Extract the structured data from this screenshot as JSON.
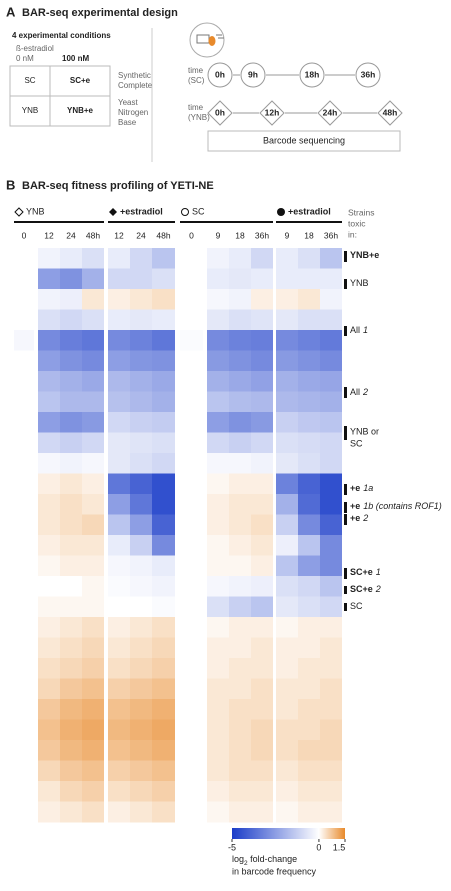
{
  "panel_a": {
    "letter": "A",
    "title": "BAR-seq experimental design",
    "conditions_title": "4 experimental conditions",
    "drug": "ß-estradiol",
    "dose_low": "0 nM",
    "dose_high": "100 nM",
    "table": [
      [
        "SC",
        "SC+e"
      ],
      [
        "YNB",
        "YNB+e"
      ]
    ],
    "media": [
      [
        "Synthetic",
        "Complete"
      ],
      [
        "Yeast",
        "Nitrogen",
        "Base"
      ]
    ],
    "time_sc": {
      "label": [
        "time",
        "(SC)"
      ],
      "points": [
        "0h",
        "9h",
        "18h",
        "36h"
      ]
    },
    "time_ynb": {
      "label": [
        "time",
        "(YNB)"
      ],
      "points": [
        "0h",
        "12h",
        "24h",
        "48h"
      ]
    },
    "sequencing": "Barcode sequencing"
  },
  "panel_b": {
    "letter": "B",
    "title": "BAR-seq fitness profiling of YETI-NE",
    "groups": [
      "YNB",
      "+estradiol",
      "SC",
      "+estradiol"
    ],
    "strains_header": [
      "Strains",
      "toxic",
      "in:"
    ],
    "columns": [
      "0",
      "12",
      "24",
      "48h",
      "12",
      "24",
      "48h",
      "0",
      "9",
      "18",
      "36h",
      "9",
      "18",
      "36h"
    ],
    "right_labels": [
      {
        "main": "YNB+e"
      },
      {
        "main": "YNB"
      },
      {
        "main": "All",
        "italic": "1"
      },
      {
        "main": "All",
        "italic": "2"
      },
      {
        "lines": [
          "YNB or",
          "SC"
        ]
      },
      {
        "main": "+e",
        "italic": "1a"
      },
      {
        "main": "+e",
        "italic": "1b (contains ROF1)"
      },
      {
        "main": "+e",
        "italic": "2"
      },
      {
        "main": "SC+e",
        "italic": "1"
      },
      {
        "main": "SC+e",
        "italic": "2"
      },
      {
        "main": "SC"
      }
    ],
    "heatmap": {
      "values": [
        [
          0,
          -0.3,
          -0.5,
          -0.8,
          -0.5,
          -1,
          -1.5,
          0,
          -0.3,
          -0.5,
          -1,
          -0.5,
          -0.8,
          -1.5
        ],
        [
          0,
          -2.5,
          -2.8,
          -2,
          -1,
          -1,
          -0.8,
          0,
          -0.5,
          -0.6,
          -0.5,
          -0.5,
          -0.5,
          -0.5
        ],
        [
          0,
          -0.3,
          -0.4,
          0.3,
          0.2,
          0.3,
          0.4,
          0,
          -0.2,
          -0.3,
          0.2,
          0.2,
          0.3,
          -0.3
        ],
        [
          0,
          -0.8,
          -1,
          -0.8,
          -0.5,
          -0.6,
          -0.5,
          0,
          -0.6,
          -0.8,
          -0.7,
          -0.6,
          -0.8,
          -0.8
        ],
        [
          -0.2,
          -3,
          -3.3,
          -3.5,
          -3,
          -3.2,
          -3.5,
          -0.1,
          -3,
          -3.2,
          -3.3,
          -3,
          -3.2,
          -3.4
        ],
        [
          0,
          -2.5,
          -2.8,
          -3,
          -2.5,
          -2.7,
          -2.8,
          0,
          -2.6,
          -2.8,
          -3,
          -2.6,
          -2.8,
          -3
        ],
        [
          0,
          -1.8,
          -2,
          -2.2,
          -1.8,
          -2,
          -2.2,
          0,
          -2,
          -2.2,
          -2.4,
          -2,
          -2.2,
          -2.3
        ],
        [
          0,
          -1.5,
          -1.8,
          -1.8,
          -1.6,
          -1.8,
          -2,
          0,
          -1.5,
          -1.7,
          -1.8,
          -1.8,
          -1.9,
          -2
        ],
        [
          0,
          -2.5,
          -2.8,
          -2.6,
          -1,
          -1.2,
          -1.3,
          0,
          -2.5,
          -2.8,
          -2.6,
          -1.2,
          -1.4,
          -1.5
        ],
        [
          0,
          -1,
          -1.2,
          -1,
          -0.6,
          -0.7,
          -0.8,
          0,
          -1,
          -1.2,
          -1,
          -0.8,
          -0.9,
          -1
        ],
        [
          0,
          -0.2,
          -0.3,
          -0.2,
          -0.6,
          -0.8,
          -1,
          0,
          -0.2,
          -0.2,
          -0.3,
          -0.6,
          -0.8,
          -1
        ],
        [
          0,
          0.2,
          0.3,
          0.2,
          -3.5,
          -4,
          -4.5,
          0,
          0.1,
          0.2,
          0.2,
          -3.2,
          -4,
          -4.5
        ],
        [
          0,
          0.3,
          0.4,
          0.3,
          -2.5,
          -3.5,
          -4.5,
          0,
          0.2,
          0.3,
          0.3,
          -2,
          -3.8,
          -4.5
        ],
        [
          0,
          0.3,
          0.4,
          0.5,
          -1.5,
          -2.5,
          -4,
          0,
          0.2,
          0.3,
          0.4,
          -1.2,
          -3,
          -4
        ],
        [
          0,
          0.2,
          0.3,
          0.3,
          -0.5,
          -1.2,
          -3,
          0,
          0.1,
          0.2,
          0.3,
          -0.4,
          -1.5,
          -3
        ],
        [
          0,
          0.1,
          0.2,
          0.2,
          -0.2,
          -0.3,
          -0.5,
          0,
          0.1,
          0.1,
          0.2,
          -1.5,
          -2.5,
          -3
        ],
        [
          0,
          0,
          0,
          0.1,
          -0.1,
          -0.2,
          -0.3,
          0,
          -0.2,
          -0.3,
          -0.4,
          -0.8,
          -1,
          -1.5
        ],
        [
          0,
          0.1,
          0.1,
          0.1,
          0,
          0,
          -0.1,
          0,
          -0.8,
          -1.2,
          -1.5,
          -0.6,
          -0.8,
          -1
        ],
        [
          0,
          0.2,
          0.3,
          0.4,
          0.2,
          0.3,
          0.4,
          0,
          0.1,
          0.2,
          0.2,
          0.1,
          0.2,
          0.2
        ],
        [
          0,
          0.3,
          0.4,
          0.5,
          0.3,
          0.4,
          0.5,
          0,
          0.2,
          0.2,
          0.3,
          0.2,
          0.2,
          0.3
        ],
        [
          0,
          0.4,
          0.5,
          0.6,
          0.4,
          0.5,
          0.6,
          0,
          0.2,
          0.3,
          0.3,
          0.2,
          0.3,
          0.3
        ],
        [
          0,
          0.5,
          0.7,
          0.8,
          0.6,
          0.7,
          0.8,
          0,
          0.3,
          0.3,
          0.4,
          0.3,
          0.3,
          0.4
        ],
        [
          0,
          0.7,
          0.9,
          1,
          0.8,
          0.9,
          1,
          0,
          0.3,
          0.4,
          0.4,
          0.3,
          0.4,
          0.4
        ],
        [
          0,
          0.8,
          1,
          1.1,
          0.9,
          1,
          1.1,
          0,
          0.3,
          0.4,
          0.5,
          0.4,
          0.4,
          0.5
        ],
        [
          0,
          0.7,
          0.9,
          1,
          0.8,
          0.9,
          1,
          0,
          0.3,
          0.4,
          0.5,
          0.4,
          0.5,
          0.5
        ],
        [
          0,
          0.5,
          0.7,
          0.8,
          0.6,
          0.7,
          0.8,
          0,
          0.3,
          0.4,
          0.4,
          0.3,
          0.4,
          0.4
        ],
        [
          0,
          0.3,
          0.5,
          0.6,
          0.4,
          0.5,
          0.6,
          0,
          0.2,
          0.3,
          0.3,
          0.2,
          0.3,
          0.3
        ],
        [
          0,
          0.2,
          0.3,
          0.4,
          0.2,
          0.3,
          0.4,
          0,
          0.1,
          0.2,
          0.2,
          0.1,
          0.2,
          0.2
        ]
      ],
      "low_color": "#1a3cc8",
      "high_color": "#e88a2b"
    },
    "colorbar": {
      "lim": [
        -5,
        1.5
      ],
      "ticks": [
        -5,
        0,
        1.5
      ],
      "label": [
        "log",
        "2",
        " fold-change",
        "in barcode frequency"
      ]
    }
  }
}
